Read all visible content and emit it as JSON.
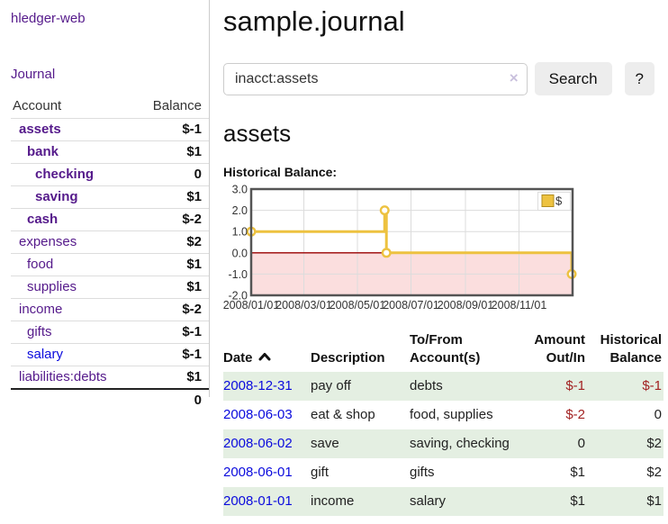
{
  "colors": {
    "accent_purple": "#551a8b",
    "link_blue": "#0b0bdd",
    "negative": "#a22222",
    "negative_soft": "#b05b5b",
    "row_stripe_green": "#e4efe2",
    "button_gray": "#ededed"
  },
  "sidebar": {
    "brand": "hledger-web",
    "nav_journal": "Journal",
    "table": {
      "col_account": "Account",
      "col_balance": "Balance",
      "accounts": [
        {
          "name": "assets",
          "balance": "$-1"
        },
        {
          "name": "bank",
          "balance": "$1"
        },
        {
          "name": "checking",
          "balance": "0"
        },
        {
          "name": "saving",
          "balance": "$1"
        },
        {
          "name": "cash",
          "balance": "$-2"
        },
        {
          "name": "expenses",
          "balance": "$2"
        },
        {
          "name": "food",
          "balance": "$1"
        },
        {
          "name": "supplies",
          "balance": "$1"
        },
        {
          "name": "income",
          "balance": "$-2"
        },
        {
          "name": "gifts",
          "balance": "$-1"
        },
        {
          "name": "salary",
          "balance": "$-1"
        },
        {
          "name": "liabilities:debts",
          "balance": "$1"
        }
      ],
      "total": "0"
    }
  },
  "header": {
    "title": "sample.journal"
  },
  "search": {
    "value": "inacct:assets",
    "clear_label": "×",
    "search_button": "Search",
    "help_button": "?"
  },
  "account_view": {
    "heading": "assets",
    "section_label": "Historical Balance:"
  },
  "chart_data": {
    "type": "line",
    "step": true,
    "title": "Historical Balance:",
    "series": [
      {
        "name": "$",
        "color": "#edc240",
        "points": [
          [
            "2008-01-01",
            1
          ],
          [
            "2008-06-01",
            2
          ],
          [
            "2008-06-03",
            0
          ],
          [
            "2008-12-31",
            -1
          ]
        ]
      }
    ],
    "xlim": [
      "2008-01-01",
      "2009-01-01"
    ],
    "ylim": [
      -2,
      3
    ],
    "x_ticks": [
      "2008/01/01",
      "2008/03/01",
      "2008/05/01",
      "2008/07/01",
      "2008/09/01",
      "2008/11/01"
    ],
    "y_ticks": [
      "3.0",
      "2.0",
      "1.0",
      "0.0",
      "-1.0",
      "-2.0"
    ],
    "grid": true,
    "legend": {
      "position": "top-right",
      "label": "$"
    },
    "negative_region_color": "#fbdede",
    "zero_line_color": "#990000"
  },
  "register": {
    "columns": [
      "Date",
      "Description",
      "To/From\nAccount(s)",
      "Amount\nOut/In",
      "Historical\nBalance"
    ],
    "sort_icon": "chevron-up",
    "rows": [
      {
        "date": "2008-12-31",
        "description": "pay off",
        "accounts": "debts",
        "amount": "$-1",
        "balance": "$-1"
      },
      {
        "date": "2008-06-03",
        "description": "eat & shop",
        "accounts": "food, supplies",
        "amount": "$-2",
        "balance": "0"
      },
      {
        "date": "2008-06-02",
        "description": "save",
        "accounts": "saving, checking",
        "amount": "0",
        "balance": "$2"
      },
      {
        "date": "2008-06-01",
        "description": "gift",
        "accounts": "gifts",
        "amount": "$1",
        "balance": "$2"
      },
      {
        "date": "2008-01-01",
        "description": "income",
        "accounts": "salary",
        "amount": "$1",
        "balance": "$1"
      }
    ]
  }
}
